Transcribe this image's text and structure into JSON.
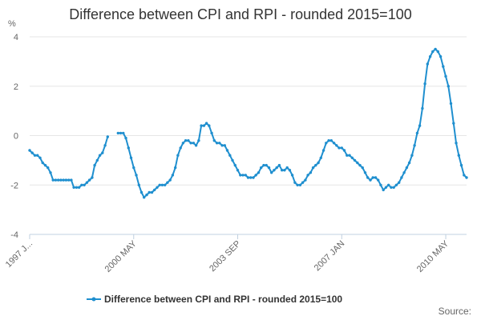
{
  "chart_data": {
    "type": "line",
    "title": "Difference between CPI and RPI - rounded 2015=100",
    "ylabel": "%",
    "xlabel": "",
    "ylim": [
      -4,
      4
    ],
    "yticks": [
      -4,
      -2,
      0,
      2,
      4
    ],
    "xticks": [
      {
        "index": 0,
        "label": "1997 J..."
      },
      {
        "index": 40,
        "label": "2000 MAY"
      },
      {
        "index": 80,
        "label": "2003 SEP"
      },
      {
        "index": 120,
        "label": "2007 JAN"
      },
      {
        "index": 160,
        "label": "2010 MAY"
      }
    ],
    "grid": true,
    "legend_position": "bottom-center",
    "series": [
      {
        "name": "Difference between CPI and RPI - rounded 2015=100",
        "color": "#1f8fcf",
        "values": [
          -0.6,
          -0.7,
          -0.8,
          -0.8,
          -0.9,
          -1.1,
          -1.2,
          -1.3,
          -1.5,
          -1.8,
          -1.8,
          -1.8,
          -1.8,
          -1.8,
          -1.8,
          -1.8,
          -1.8,
          -2.1,
          -2.1,
          -2.1,
          -2.0,
          -2.0,
          -1.9,
          -1.8,
          -1.7,
          -1.2,
          -1.0,
          -0.8,
          -0.7,
          -0.4,
          -0.05,
          null,
          null,
          null,
          0.1,
          0.1,
          0.1,
          -0.1,
          -0.5,
          -0.9,
          -1.3,
          -1.6,
          -2.0,
          -2.3,
          -2.5,
          -2.4,
          -2.3,
          -2.3,
          -2.2,
          -2.1,
          -2.0,
          -2.0,
          -2.0,
          -1.9,
          -1.8,
          -1.6,
          -1.3,
          -0.8,
          -0.5,
          -0.3,
          -0.2,
          -0.2,
          -0.3,
          -0.3,
          -0.4,
          -0.2,
          0.4,
          0.4,
          0.5,
          0.4,
          0.1,
          -0.2,
          -0.3,
          -0.3,
          -0.4,
          -0.4,
          -0.6,
          -0.8,
          -1.0,
          -1.2,
          -1.4,
          -1.6,
          -1.6,
          -1.6,
          -1.7,
          -1.7,
          -1.7,
          -1.6,
          -1.5,
          -1.3,
          -1.2,
          -1.2,
          -1.3,
          -1.5,
          -1.4,
          -1.3,
          -1.2,
          -1.4,
          -1.4,
          -1.3,
          -1.4,
          -1.6,
          -1.9,
          -2.0,
          -2.0,
          -1.9,
          -1.8,
          -1.6,
          -1.5,
          -1.3,
          -1.2,
          -1.1,
          -0.9,
          -0.6,
          -0.3,
          -0.2,
          -0.2,
          -0.3,
          -0.4,
          -0.5,
          -0.5,
          -0.6,
          -0.8,
          -0.8,
          -0.9,
          -1.0,
          -1.1,
          -1.2,
          -1.3,
          -1.5,
          -1.7,
          -1.8,
          -1.7,
          -1.7,
          -1.8,
          -2.0,
          -2.2,
          -2.1,
          -2.0,
          -2.1,
          -2.1,
          -2.0,
          -1.9,
          -1.7,
          -1.5,
          -1.3,
          -1.1,
          -0.8,
          -0.4,
          0.1,
          0.4,
          1.1,
          2.1,
          2.9,
          3.2,
          3.4,
          3.5,
          3.4,
          3.2,
          2.8,
          2.4,
          2.0,
          1.3,
          0.5,
          -0.3,
          -0.8,
          -1.2,
          -1.6,
          -1.7
        ]
      }
    ]
  },
  "source": {
    "label": "Source:"
  }
}
